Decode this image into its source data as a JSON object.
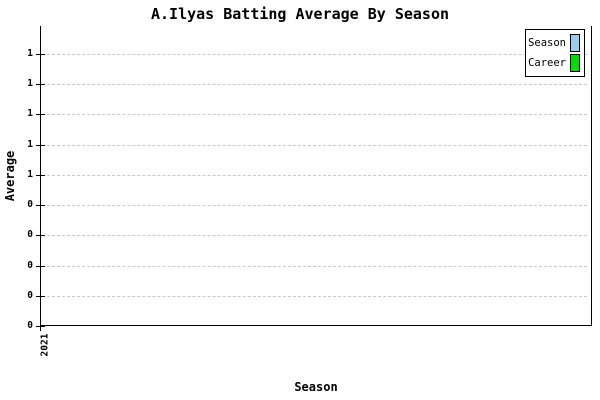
{
  "chart_data": {
    "type": "bar",
    "title": "A.Ilyas Batting Average By Season",
    "xlabel": "Season",
    "ylabel": "Average",
    "categories": [
      "2021"
    ],
    "series": [
      {
        "name": "Season",
        "color": "#99CCEE",
        "values": [
          0
        ]
      },
      {
        "name": "Career",
        "color": "#00DD00",
        "values": [
          0
        ]
      }
    ],
    "ylim": [
      0,
      1
    ],
    "yticks": [
      {
        "value": 0.0,
        "label": "0"
      },
      {
        "value": 0.1,
        "label": "0"
      },
      {
        "value": 0.2,
        "label": "0"
      },
      {
        "value": 0.3,
        "label": "0"
      },
      {
        "value": 0.4,
        "label": "0"
      },
      {
        "value": 0.5,
        "label": "1"
      },
      {
        "value": 0.6,
        "label": "1"
      },
      {
        "value": 0.7,
        "label": "1"
      },
      {
        "value": 0.8,
        "label": "1"
      },
      {
        "value": 0.9,
        "label": "1"
      }
    ],
    "grid": "horizontal-dashed",
    "legend_position": "top-right",
    "legend": [
      {
        "label": "Season",
        "color": "#99CCEE"
      },
      {
        "label": "Career",
        "color": "#00DD00"
      }
    ],
    "colors": {
      "axis": "#000000",
      "grid": "#c8c8c8",
      "background": "#ffffff"
    }
  }
}
